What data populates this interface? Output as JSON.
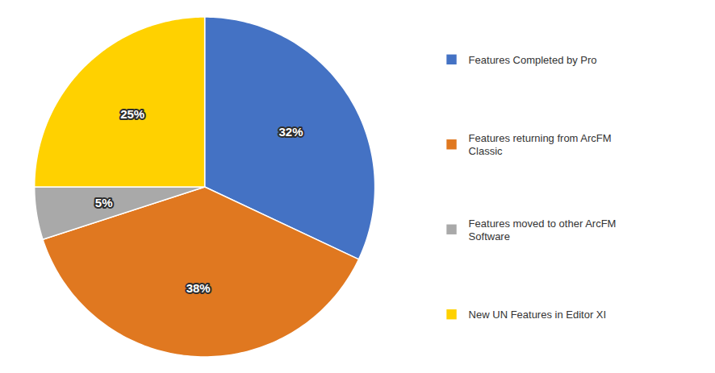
{
  "chart_data": {
    "type": "pie",
    "categories": [
      "Features Completed by Pro",
      "Features returning from ArcFM\nClassic",
      "Features moved to other ArcFM\nSoftware",
      "New UN Features in Editor XI"
    ],
    "values": [
      32,
      38,
      5,
      25
    ],
    "value_labels": [
      "32%",
      "38%",
      "5%",
      "25%"
    ],
    "colors": [
      "#4472C4",
      "#E07820",
      "#A9A9A9",
      "#FFD100"
    ],
    "data_labels": true,
    "legend": "right"
  }
}
